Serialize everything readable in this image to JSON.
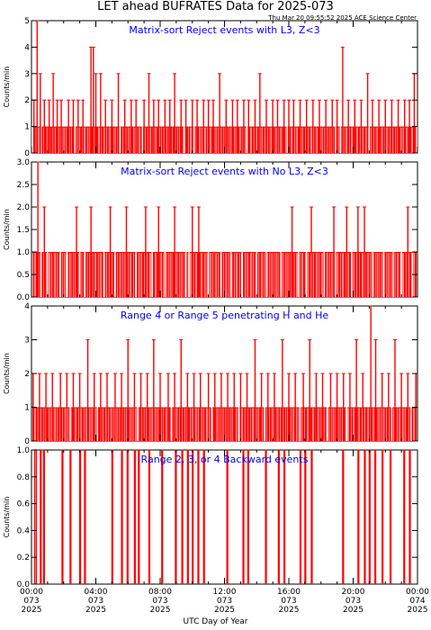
{
  "figure": {
    "title": "LET ahead BUFRATES Data for 2025-073",
    "timestamp": "Thu Mar 20 09:55:52 2025 ACE Science Center",
    "xlabel": "UTC Day of Year"
  },
  "colors": {
    "series": "#ff0000",
    "panel_title": "#0000ff",
    "axis": "#000000"
  },
  "chart_data": [
    {
      "type": "bar",
      "title": "Matrix-sort Reject events with L3, Z<3",
      "ylabel": "Counts/min",
      "ylim": [
        0,
        5
      ],
      "yticks": [
        "0",
        "1",
        "2",
        "3",
        "4",
        "5"
      ],
      "xlim": [
        0,
        24
      ],
      "baseline": 1,
      "spikes": [
        {
          "x": 0.15,
          "y": 2
        },
        {
          "x": 0.35,
          "y": 5
        },
        {
          "x": 0.55,
          "y": 3
        },
        {
          "x": 0.8,
          "y": 2
        },
        {
          "x": 1.1,
          "y": 2
        },
        {
          "x": 1.35,
          "y": 3
        },
        {
          "x": 1.6,
          "y": 2
        },
        {
          "x": 1.85,
          "y": 2
        },
        {
          "x": 2.3,
          "y": 2
        },
        {
          "x": 2.6,
          "y": 2
        },
        {
          "x": 2.9,
          "y": 2
        },
        {
          "x": 3.2,
          "y": 2
        },
        {
          "x": 3.7,
          "y": 4
        },
        {
          "x": 3.85,
          "y": 4
        },
        {
          "x": 4.0,
          "y": 3
        },
        {
          "x": 4.3,
          "y": 3
        },
        {
          "x": 4.6,
          "y": 2
        },
        {
          "x": 5.0,
          "y": 2
        },
        {
          "x": 5.4,
          "y": 3
        },
        {
          "x": 5.8,
          "y": 2
        },
        {
          "x": 6.2,
          "y": 2
        },
        {
          "x": 6.5,
          "y": 2
        },
        {
          "x": 7.0,
          "y": 2
        },
        {
          "x": 7.3,
          "y": 3
        },
        {
          "x": 7.6,
          "y": 2
        },
        {
          "x": 7.9,
          "y": 2
        },
        {
          "x": 8.3,
          "y": 2
        },
        {
          "x": 8.6,
          "y": 2
        },
        {
          "x": 8.9,
          "y": 3
        },
        {
          "x": 9.3,
          "y": 2
        },
        {
          "x": 9.6,
          "y": 2
        },
        {
          "x": 10.0,
          "y": 2
        },
        {
          "x": 10.3,
          "y": 2
        },
        {
          "x": 10.7,
          "y": 2
        },
        {
          "x": 11.0,
          "y": 2
        },
        {
          "x": 11.3,
          "y": 2
        },
        {
          "x": 11.7,
          "y": 3
        },
        {
          "x": 12.1,
          "y": 2
        },
        {
          "x": 12.5,
          "y": 2
        },
        {
          "x": 12.8,
          "y": 2
        },
        {
          "x": 13.2,
          "y": 2
        },
        {
          "x": 13.5,
          "y": 2
        },
        {
          "x": 13.9,
          "y": 2
        },
        {
          "x": 14.2,
          "y": 3
        },
        {
          "x": 14.6,
          "y": 2
        },
        {
          "x": 15.0,
          "y": 2
        },
        {
          "x": 15.3,
          "y": 2
        },
        {
          "x": 15.7,
          "y": 2
        },
        {
          "x": 16.0,
          "y": 2
        },
        {
          "x": 16.3,
          "y": 2
        },
        {
          "x": 16.7,
          "y": 2
        },
        {
          "x": 17.1,
          "y": 2
        },
        {
          "x": 17.5,
          "y": 2
        },
        {
          "x": 17.9,
          "y": 2
        },
        {
          "x": 18.3,
          "y": 2
        },
        {
          "x": 18.7,
          "y": 2
        },
        {
          "x": 19.0,
          "y": 2
        },
        {
          "x": 19.35,
          "y": 4
        },
        {
          "x": 19.7,
          "y": 2
        },
        {
          "x": 20.1,
          "y": 2
        },
        {
          "x": 20.5,
          "y": 2
        },
        {
          "x": 20.9,
          "y": 3
        },
        {
          "x": 21.2,
          "y": 2
        },
        {
          "x": 21.6,
          "y": 2
        },
        {
          "x": 22.0,
          "y": 2
        },
        {
          "x": 22.4,
          "y": 2
        },
        {
          "x": 22.8,
          "y": 2
        },
        {
          "x": 23.2,
          "y": 2
        },
        {
          "x": 23.5,
          "y": 2
        },
        {
          "x": 23.8,
          "y": 3
        }
      ],
      "gaps": [
        0.05,
        0.6,
        2.7,
        5.5,
        6.9,
        9.5,
        10.1,
        13.4,
        15.9,
        18.9,
        19.2,
        21.0,
        23.95
      ]
    },
    {
      "type": "bar",
      "title": "Matrix-sort Reject events with No L3, Z<3",
      "ylabel": "Counts/min",
      "ylim": [
        0,
        3
      ],
      "yticks": [
        "0.0",
        "0.5",
        "1.0",
        "1.5",
        "2.0",
        "2.5",
        "3.0"
      ],
      "xlim": [
        0,
        24
      ],
      "baseline": 1,
      "spikes": [
        {
          "x": 0.4,
          "y": 3
        },
        {
          "x": 0.8,
          "y": 2
        },
        {
          "x": 2.8,
          "y": 2
        },
        {
          "x": 3.7,
          "y": 2
        },
        {
          "x": 4.9,
          "y": 2
        },
        {
          "x": 5.9,
          "y": 2
        },
        {
          "x": 7.1,
          "y": 2
        },
        {
          "x": 7.9,
          "y": 2
        },
        {
          "x": 8.9,
          "y": 2
        },
        {
          "x": 10.0,
          "y": 2
        },
        {
          "x": 10.4,
          "y": 2
        },
        {
          "x": 16.2,
          "y": 2
        },
        {
          "x": 17.4,
          "y": 2
        },
        {
          "x": 18.8,
          "y": 2
        },
        {
          "x": 19.6,
          "y": 2
        },
        {
          "x": 20.3,
          "y": 2
        },
        {
          "x": 20.7,
          "y": 2
        },
        {
          "x": 23.4,
          "y": 2
        }
      ],
      "gaps": [
        0.6,
        1.0,
        1.8,
        2.2,
        3.0,
        3.3,
        4.5,
        5.2,
        6.5,
        7.5,
        8.3,
        9.6,
        9.8,
        11.0,
        11.8,
        12.4,
        13.1,
        14.0,
        14.6,
        15.5,
        16.6,
        17.1,
        18.2,
        18.9,
        19.9,
        21.2,
        21.9,
        22.5,
        23.0,
        23.7
      ]
    },
    {
      "type": "bar",
      "title": "Range 4 or Range 5 penetrating H and He",
      "ylabel": "Counts/min",
      "ylim": [
        0,
        4
      ],
      "yticks": [
        "0",
        "1",
        "2",
        "3",
        "4"
      ],
      "xlim": [
        0,
        24
      ],
      "baseline": 1,
      "spikes": [
        {
          "x": 0.1,
          "y": 2
        },
        {
          "x": 0.5,
          "y": 2
        },
        {
          "x": 0.9,
          "y": 2
        },
        {
          "x": 1.3,
          "y": 2
        },
        {
          "x": 1.8,
          "y": 2
        },
        {
          "x": 2.2,
          "y": 2
        },
        {
          "x": 2.6,
          "y": 2
        },
        {
          "x": 3.0,
          "y": 2
        },
        {
          "x": 3.5,
          "y": 3
        },
        {
          "x": 3.9,
          "y": 2
        },
        {
          "x": 4.3,
          "y": 2
        },
        {
          "x": 4.7,
          "y": 2
        },
        {
          "x": 5.2,
          "y": 2
        },
        {
          "x": 5.6,
          "y": 2
        },
        {
          "x": 6.0,
          "y": 3
        },
        {
          "x": 6.4,
          "y": 2
        },
        {
          "x": 6.8,
          "y": 2
        },
        {
          "x": 7.2,
          "y": 2
        },
        {
          "x": 7.6,
          "y": 3
        },
        {
          "x": 8.0,
          "y": 2
        },
        {
          "x": 8.5,
          "y": 2
        },
        {
          "x": 8.9,
          "y": 2
        },
        {
          "x": 9.3,
          "y": 3
        },
        {
          "x": 9.7,
          "y": 2
        },
        {
          "x": 10.1,
          "y": 2
        },
        {
          "x": 10.5,
          "y": 2
        },
        {
          "x": 11.0,
          "y": 2
        },
        {
          "x": 11.4,
          "y": 2
        },
        {
          "x": 11.8,
          "y": 2
        },
        {
          "x": 12.2,
          "y": 2
        },
        {
          "x": 12.6,
          "y": 2
        },
        {
          "x": 13.0,
          "y": 2
        },
        {
          "x": 13.4,
          "y": 2
        },
        {
          "x": 13.9,
          "y": 3
        },
        {
          "x": 14.3,
          "y": 2
        },
        {
          "x": 14.7,
          "y": 2
        },
        {
          "x": 15.1,
          "y": 2
        },
        {
          "x": 15.6,
          "y": 3
        },
        {
          "x": 16.0,
          "y": 2
        },
        {
          "x": 16.4,
          "y": 2
        },
        {
          "x": 16.9,
          "y": 2
        },
        {
          "x": 17.3,
          "y": 3
        },
        {
          "x": 17.7,
          "y": 2
        },
        {
          "x": 18.1,
          "y": 2
        },
        {
          "x": 18.6,
          "y": 2
        },
        {
          "x": 19.0,
          "y": 2
        },
        {
          "x": 19.4,
          "y": 2
        },
        {
          "x": 19.8,
          "y": 2
        },
        {
          "x": 20.2,
          "y": 3
        },
        {
          "x": 20.6,
          "y": 2
        },
        {
          "x": 21.1,
          "y": 4
        },
        {
          "x": 21.4,
          "y": 3
        },
        {
          "x": 21.8,
          "y": 2
        },
        {
          "x": 22.2,
          "y": 2
        },
        {
          "x": 22.6,
          "y": 3
        },
        {
          "x": 23.0,
          "y": 2
        },
        {
          "x": 23.4,
          "y": 2
        },
        {
          "x": 23.9,
          "y": 2
        }
      ],
      "gaps": [
        2.4,
        4.1,
        6.6,
        8.7,
        11.2,
        12.9,
        14.5,
        16.7,
        18.4,
        19.6,
        22.4,
        23.6
      ]
    },
    {
      "type": "bar",
      "title": "Range 2, 3, or 4 Backward events",
      "ylabel": "Counts/min",
      "ylim": [
        0,
        1
      ],
      "yticks": [
        "0.0",
        "0.2",
        "0.4",
        "0.6",
        "0.8",
        "1.0"
      ],
      "xlim": [
        0,
        24
      ],
      "xticks": [
        {
          "x": 0,
          "lines": [
            "00:00",
            "073",
            "2025"
          ]
        },
        {
          "x": 4,
          "lines": [
            "04:00",
            "073",
            "2025"
          ]
        },
        {
          "x": 8,
          "lines": [
            "08:00",
            "073",
            "2025"
          ]
        },
        {
          "x": 12,
          "lines": [
            "12:00",
            "073",
            "2025"
          ]
        },
        {
          "x": 16,
          "lines": [
            "16:00",
            "073",
            "2025"
          ]
        },
        {
          "x": 20,
          "lines": [
            "20:00",
            "073",
            "2025"
          ]
        },
        {
          "x": 24,
          "lines": [
            "00:00",
            "074",
            "2025"
          ]
        }
      ],
      "baseline": 0,
      "pulses": [
        [
          0.2,
          0.3
        ],
        [
          0.55,
          0.6
        ],
        [
          0.75,
          0.8
        ],
        [
          1.9,
          1.95
        ],
        [
          2.4,
          2.45
        ],
        [
          3.0,
          3.05
        ],
        [
          3.3,
          3.35
        ],
        [
          5.0,
          5.05
        ],
        [
          5.6,
          5.65
        ],
        [
          5.95,
          6.0
        ],
        [
          6.4,
          6.45
        ],
        [
          6.65,
          6.7
        ],
        [
          7.3,
          7.35
        ],
        [
          8.1,
          8.15
        ],
        [
          8.95,
          9.0
        ],
        [
          9.35,
          9.4
        ],
        [
          9.7,
          9.75
        ],
        [
          10.0,
          10.05
        ],
        [
          10.35,
          10.4
        ],
        [
          10.7,
          10.75
        ],
        [
          12.15,
          12.2
        ],
        [
          13.15,
          13.2
        ],
        [
          13.45,
          13.5
        ],
        [
          14.55,
          14.6
        ],
        [
          15.35,
          15.4
        ],
        [
          15.7,
          15.75
        ],
        [
          16.7,
          16.75
        ],
        [
          17.0,
          17.05
        ],
        [
          17.4,
          17.45
        ],
        [
          19.35,
          19.4
        ],
        [
          20.3,
          20.35
        ],
        [
          20.7,
          20.75
        ],
        [
          21.0,
          21.05
        ],
        [
          21.35,
          21.4
        ],
        [
          21.8,
          21.85
        ],
        [
          22.3,
          22.35
        ],
        [
          23.15,
          23.2
        ],
        [
          23.5,
          23.55
        ]
      ]
    }
  ]
}
